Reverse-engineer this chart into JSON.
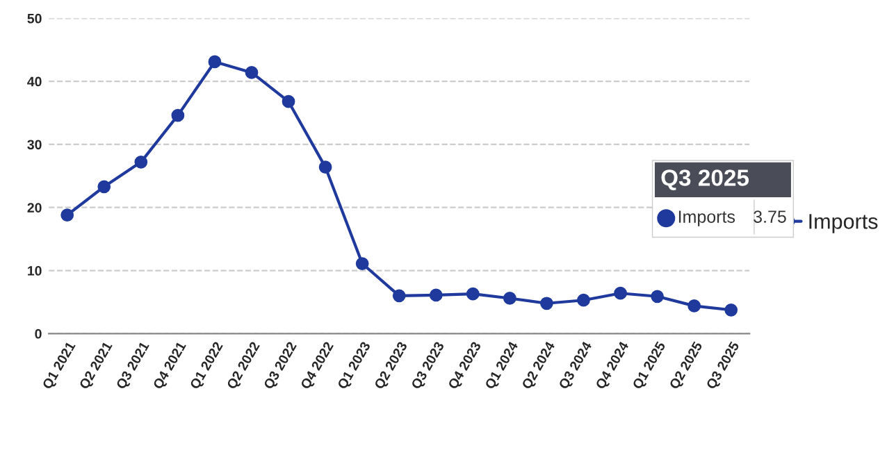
{
  "chart_data": {
    "type": "line",
    "categories": [
      "Q1 2021",
      "Q2 2021",
      "Q3 2021",
      "Q4 2021",
      "Q1 2022",
      "Q2 2022",
      "Q3 2022",
      "Q4 2022",
      "Q1 2023",
      "Q2 2023",
      "Q3 2023",
      "Q4 2023",
      "Q1 2024",
      "Q2 2024",
      "Q3 2024",
      "Q4 2024",
      "Q1 2025",
      "Q2 2025",
      "Q3 2025"
    ],
    "series": [
      {
        "name": "Imports",
        "color": "#1f3a9c",
        "values": [
          18.8,
          23.3,
          27.2,
          34.6,
          43.1,
          41.4,
          36.8,
          26.4,
          11.1,
          6.0,
          6.1,
          6.3,
          5.6,
          4.8,
          5.3,
          6.4,
          5.9,
          4.4,
          3.75
        ]
      }
    ],
    "ylim": [
      0,
      50
    ],
    "yticks": [
      0,
      10,
      20,
      30,
      40,
      50
    ],
    "grid": "y",
    "legend": "right",
    "marker": "circle",
    "line_style": "solid",
    "annotations": [
      "Q3 2025",
      "Imports",
      "3.75"
    ]
  }
}
